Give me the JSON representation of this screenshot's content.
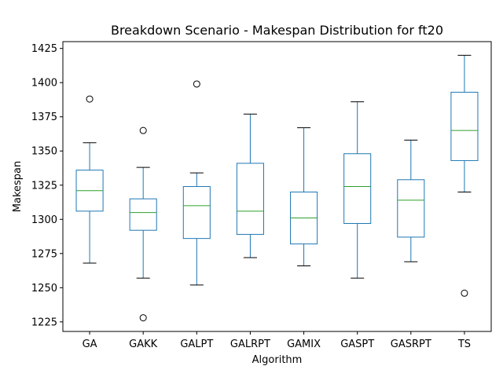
{
  "chart_data": {
    "type": "boxplot",
    "title": "Breakdown Scenario - Makespan Distribution for ft20",
    "xlabel": "Algorithm",
    "ylabel": "Makespan",
    "ylim": [
      1218,
      1430
    ],
    "yticks": [
      1225,
      1250,
      1275,
      1300,
      1325,
      1350,
      1375,
      1400,
      1425
    ],
    "grid": false,
    "colors": {
      "box": "#1f77b4",
      "median": "#2ca02c",
      "whisker": "#1f77b4",
      "cap": "#000000",
      "outlier": "#000000"
    },
    "categories": [
      "GA",
      "GAKK",
      "GALPT",
      "GALRPT",
      "GAMIX",
      "GASPT",
      "GASRPT",
      "TS"
    ],
    "boxes": [
      {
        "name": "GA",
        "whislo": 1268,
        "q1": 1306,
        "med": 1321,
        "q3": 1336,
        "whishi": 1356,
        "fliers": [
          1388
        ]
      },
      {
        "name": "GAKK",
        "whislo": 1257,
        "q1": 1292,
        "med": 1305,
        "q3": 1315,
        "whishi": 1338,
        "fliers": [
          1365,
          1228
        ]
      },
      {
        "name": "GALPT",
        "whislo": 1252,
        "q1": 1286,
        "med": 1310,
        "q3": 1324,
        "whishi": 1334,
        "fliers": [
          1399
        ]
      },
      {
        "name": "GALRPT",
        "whislo": 1272,
        "q1": 1289,
        "med": 1306,
        "q3": 1341,
        "whishi": 1377,
        "fliers": []
      },
      {
        "name": "GAMIX",
        "whislo": 1266,
        "q1": 1282,
        "med": 1301,
        "q3": 1320,
        "whishi": 1367,
        "fliers": []
      },
      {
        "name": "GASPT",
        "whislo": 1257,
        "q1": 1297,
        "med": 1324,
        "q3": 1348,
        "whishi": 1386,
        "fliers": []
      },
      {
        "name": "GASRPT",
        "whislo": 1269,
        "q1": 1287,
        "med": 1314,
        "q3": 1329,
        "whishi": 1358,
        "fliers": []
      },
      {
        "name": "TS",
        "whislo": 1320,
        "q1": 1343,
        "med": 1365,
        "q3": 1393,
        "whishi": 1420,
        "fliers": [
          1246
        ]
      }
    ]
  }
}
